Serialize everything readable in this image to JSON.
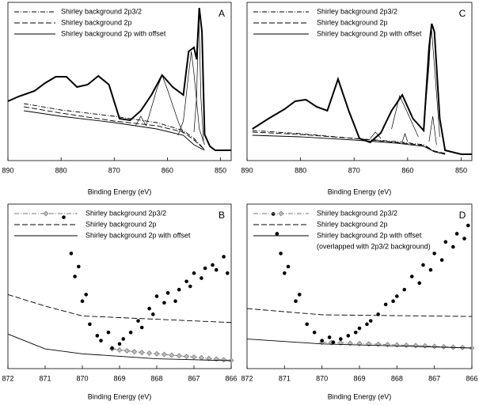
{
  "chart_data": [
    {
      "type": "line",
      "label": "A",
      "xlabel": "Binding Energy (eV)",
      "xlim": [
        890,
        848
      ],
      "ylim": [
        0,
        100
      ],
      "xticks": [
        890,
        880,
        870,
        860,
        850
      ],
      "series": [
        {
          "name": "Shirley background 2p3/2",
          "color": "#000000",
          "style": "dash-dot",
          "x": [
            887,
            880,
            870,
            862,
            857,
            855,
            853
          ],
          "values": [
            36,
            32,
            28,
            24,
            19,
            14,
            7
          ]
        },
        {
          "name": "Shirley background 2p",
          "color": "#000000",
          "style": "dashed",
          "x": [
            887,
            880,
            870,
            862,
            857,
            855,
            853
          ],
          "values": [
            34,
            30,
            25,
            22,
            18,
            13,
            7
          ]
        },
        {
          "name": "Shirley background 2p with offset",
          "color": "#000000",
          "style": "solid",
          "x": [
            887,
            880,
            870,
            862,
            857,
            855,
            853
          ],
          "values": [
            31.5,
            28,
            24,
            20,
            16,
            10,
            6.5
          ]
        },
        {
          "color": "#000000",
          "style": "bold",
          "x": [
            890,
            888,
            885,
            883,
            881,
            879,
            877,
            875,
            873,
            871,
            869,
            867,
            865,
            863,
            861,
            859,
            857,
            856,
            855,
            854.5,
            854,
            853.5,
            853,
            852,
            851,
            848
          ],
          "values": [
            37.5,
            40.5,
            44,
            49,
            53,
            53,
            46.5,
            48,
            53.5,
            48,
            26.5,
            25.5,
            31.5,
            41.5,
            54,
            46.5,
            41.5,
            69,
            71.5,
            64,
            96.5,
            81.5,
            16.5,
            9,
            6.5,
            6.5
          ]
        },
        {
          "color": "#000000",
          "style": "thin",
          "x": [
            858,
            857,
            856,
            855.5,
            855,
            854,
            853
          ],
          "values": [
            16,
            25,
            55,
            69,
            55,
            20,
            10
          ]
        },
        {
          "color": "#000000",
          "style": "thin",
          "x": [
            855,
            854.5,
            854.1,
            853.7,
            853.2
          ],
          "values": [
            18,
            40,
            96,
            40,
            12
          ]
        },
        {
          "color": "#000000",
          "style": "thin",
          "x": [
            864,
            862,
            861,
            860,
            858,
            857
          ],
          "values": [
            22,
            45,
            54,
            45,
            25,
            17
          ]
        },
        {
          "color": "#000000",
          "style": "thin",
          "x": [
            866,
            865,
            864
          ],
          "values": [
            22,
            28,
            22
          ]
        }
      ]
    },
    {
      "type": "line",
      "label": "C",
      "xlabel": "Binding Energy (eV)",
      "xlim": [
        890,
        848
      ],
      "ylim": [
        0,
        100
      ],
      "xticks": [
        890,
        880,
        870,
        860,
        850
      ],
      "series": [
        {
          "name": "Shirley background 2p3/2",
          "color": "#000000",
          "style": "dash-dot",
          "x": [
            889,
            880,
            870,
            862,
            857,
            855,
            853
          ],
          "values": [
            19,
            17,
            14,
            12,
            10,
            6,
            4.5
          ]
        },
        {
          "name": "Shirley background 2p",
          "color": "#000000",
          "style": "dashed",
          "x": [
            889,
            880,
            870,
            862,
            857,
            855,
            853
          ],
          "values": [
            18,
            16.5,
            14,
            11.5,
            9.5,
            6,
            4.5
          ]
        },
        {
          "name": "Shirley background 2p with offset",
          "color": "#000000",
          "style": "solid",
          "x": [
            889,
            880,
            870,
            862,
            857,
            855,
            853
          ],
          "values": [
            16,
            15,
            13,
            11,
            9,
            5.5,
            4
          ]
        },
        {
          "color": "#000000",
          "style": "bold",
          "x": [
            889,
            886,
            883,
            881,
            879,
            877,
            875,
            873,
            871,
            869,
            867,
            865,
            863,
            861,
            859,
            857,
            856,
            855.5,
            855,
            854,
            853,
            850,
            848
          ],
          "values": [
            20,
            26.5,
            32.5,
            37.5,
            38.5,
            34,
            31.5,
            51.5,
            31.5,
            14,
            11.5,
            17.5,
            31.5,
            41.5,
            26.5,
            19,
            71.5,
            86.5,
            81.5,
            26.5,
            6.5,
            4,
            4
          ]
        },
        {
          "color": "#000000",
          "style": "thin",
          "x": [
            857,
            856,
            855.6,
            855,
            854
          ],
          "values": [
            20,
            60,
            86,
            60,
            15
          ]
        },
        {
          "color": "#000000",
          "style": "thin",
          "x": [
            856,
            855.3,
            854.6
          ],
          "values": [
            12,
            28,
            10
          ]
        },
        {
          "color": "#000000",
          "style": "thin",
          "x": [
            863,
            861.5,
            860,
            858
          ],
          "values": [
            20,
            41,
            30,
            15
          ]
        },
        {
          "color": "#000000",
          "style": "thin",
          "x": [
            867,
            866,
            865
          ],
          "values": [
            14,
            18,
            14
          ]
        },
        {
          "color": "#000000",
          "style": "thin",
          "x": [
            861,
            860.5,
            860
          ],
          "values": [
            12,
            17,
            12
          ]
        }
      ]
    },
    {
      "type": "line",
      "label": "B",
      "xlabel": "Binding Energy (eV)",
      "xlim": [
        872,
        866
      ],
      "ylim": [
        0,
        100
      ],
      "xticks": [
        872,
        871,
        870,
        869,
        868,
        867,
        866
      ],
      "series": [
        {
          "name": "Shirley background 2p3/2",
          "color": "#777777",
          "style": "dash-dot",
          "marker": "diamond",
          "x": [
            869.2,
            869,
            868.8,
            868.6,
            868.4,
            868.2,
            868,
            867.8,
            867.6,
            867.4,
            867.2,
            867,
            866.8,
            866.6,
            866.4,
            866.2,
            866
          ],
          "values": [
            12,
            11.3,
            10.8,
            10.3,
            9.8,
            9.4,
            9,
            8.6,
            8.2,
            7.8,
            7.4,
            7,
            6.6,
            6.2,
            5.8,
            5.4,
            5
          ]
        },
        {
          "name": "Shirley background 2p",
          "color": "#000000",
          "style": "dashed",
          "x": [
            872,
            871,
            870,
            868,
            866
          ],
          "values": [
            45,
            38,
            32,
            30,
            28
          ]
        },
        {
          "name": "Shirley background 2p with offset",
          "color": "#000000",
          "style": "solid",
          "x": [
            872,
            871,
            870,
            868,
            866
          ],
          "values": [
            21,
            12,
            9,
            6,
            4.8
          ]
        },
        {
          "color": "#000000",
          "style": "none",
          "marker": "circle",
          "x": [
            870.5,
            870.3,
            870.2,
            870.1,
            870,
            869.9,
            869.8,
            869.6,
            869.5,
            869.3,
            869.2,
            869,
            868.9,
            868.7,
            868.5,
            868.4,
            868.2,
            868.1,
            868,
            867.8,
            867.7,
            867.5,
            867.4,
            867.2,
            867.1,
            867,
            866.8,
            866.7,
            866.5,
            866.4,
            866.2,
            866.1
          ],
          "values": [
            92,
            70,
            56,
            62,
            41,
            45,
            27,
            20,
            17,
            22,
            12.5,
            15,
            18,
            22,
            29,
            25,
            36.5,
            33,
            44,
            40,
            46,
            41,
            48,
            53,
            50,
            58,
            55,
            61,
            63,
            60,
            68,
            58
          ]
        }
      ]
    },
    {
      "type": "line",
      "label": "D",
      "xlabel": "Binding Energy (eV)",
      "xlim": [
        872,
        866
      ],
      "ylim": [
        0,
        100
      ],
      "xticks": [
        872,
        871,
        870,
        869,
        868,
        867,
        866
      ],
      "legend_note": "(overlapped with 2p3/2 background)",
      "series": [
        {
          "name": "Shirley background 2p3/2",
          "color": "#777777",
          "style": "dash-dot",
          "marker": "diamond",
          "x": [
            870,
            869.75,
            869.5,
            869.25,
            869,
            868.75,
            868.5,
            868.25,
            868,
            867.75,
            867.5,
            867.25,
            867,
            866.75,
            866.5,
            866.25,
            866
          ],
          "values": [
            16,
            15.8,
            15.6,
            15.4,
            15.2,
            15,
            14.8,
            14.6,
            14.4,
            14.2,
            14,
            13.8,
            13.5,
            13.3,
            13,
            12.8,
            12.5
          ]
        },
        {
          "name": "Shirley background 2p",
          "color": "#000000",
          "style": "dashed",
          "x": [
            872,
            870,
            866
          ],
          "values": [
            36.5,
            32.7,
            31.7
          ]
        },
        {
          "name": "Shirley background 2p with offset",
          "color": "#000000",
          "style": "solid",
          "x": [
            872,
            870,
            866
          ],
          "values": [
            18,
            15,
            12.5
          ]
        },
        {
          "color": "#000000",
          "style": "none",
          "marker": "circle",
          "x": [
            871.3,
            871.2,
            871.1,
            871,
            870.9,
            870.7,
            870.6,
            870.4,
            870.2,
            870,
            869.8,
            869.7,
            869.5,
            869.3,
            869.1,
            869,
            868.8,
            868.7,
            868.5,
            868.3,
            868.1,
            868,
            867.8,
            867.6,
            867.4,
            867.3,
            867.1,
            867,
            866.8,
            866.7,
            866.5,
            866.4,
            866.2,
            866.1
          ],
          "values": [
            94,
            82,
            70,
            58,
            62,
            41,
            45,
            27,
            22,
            17,
            19,
            16,
            18,
            20,
            22,
            24.5,
            27,
            29,
            33,
            39,
            41,
            44,
            48,
            56,
            52,
            63,
            60,
            70,
            66,
            77,
            74,
            82,
            79,
            87
          ]
        }
      ]
    }
  ]
}
